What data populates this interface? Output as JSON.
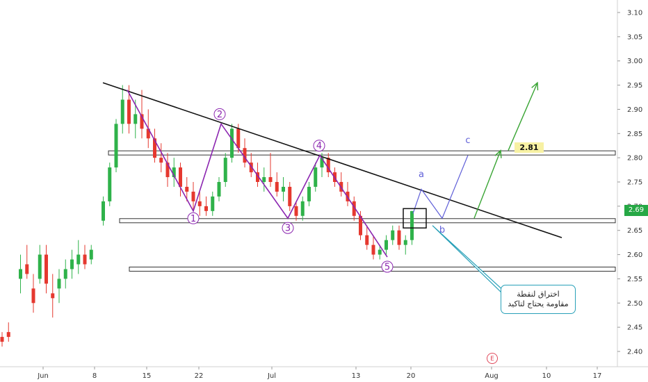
{
  "chart_data": {
    "type": "candlestick",
    "y_ticks": [
      "3.10",
      "3.05",
      "3.00",
      "2.95",
      "2.90",
      "2.85",
      "2.80",
      "2.75",
      "2.70",
      "2.65",
      "2.60",
      "2.55",
      "2.50",
      "2.45",
      "2.40"
    ],
    "x_ticks": [
      "Jun",
      "8",
      "15",
      "22",
      "Jul",
      "13",
      "20",
      "Aug",
      "10",
      "17"
    ],
    "ylim": [
      2.37,
      3.12
    ],
    "current_price": "2.69",
    "level_label": "2.81",
    "wave_labels": [
      "1",
      "2",
      "3",
      "4",
      "5"
    ],
    "abc_labels": [
      "a",
      "b",
      "c"
    ],
    "note_lines": [
      "اختراق لنقطة",
      "مقاومة يحتاج لتاكيد"
    ],
    "event_badge": "E",
    "levels": [
      2.81,
      2.67,
      2.57
    ],
    "candles": [
      [
        2.43,
        2.44,
        2.41,
        2.42
      ],
      [
        2.44,
        2.46,
        2.42,
        2.43
      ],
      [
        2.55,
        2.6,
        2.52,
        2.57
      ],
      [
        2.58,
        2.62,
        2.55,
        2.56
      ],
      [
        2.53,
        2.56,
        2.48,
        2.5
      ],
      [
        2.55,
        2.62,
        2.54,
        2.6
      ],
      [
        2.6,
        2.62,
        2.52,
        2.54
      ],
      [
        2.52,
        2.56,
        2.47,
        2.51
      ],
      [
        2.53,
        2.57,
        2.5,
        2.55
      ],
      [
        2.55,
        2.59,
        2.53,
        2.57
      ],
      [
        2.57,
        2.61,
        2.55,
        2.59
      ],
      [
        2.58,
        2.63,
        2.56,
        2.6
      ],
      [
        2.6,
        2.62,
        2.57,
        2.58
      ],
      [
        2.59,
        2.62,
        2.58,
        2.61
      ],
      [
        2.67,
        2.72,
        2.66,
        2.71
      ],
      [
        2.71,
        2.79,
        2.7,
        2.78
      ],
      [
        2.78,
        2.88,
        2.77,
        2.87
      ],
      [
        2.87,
        2.95,
        2.85,
        2.92
      ],
      [
        2.92,
        2.95,
        2.85,
        2.87
      ],
      [
        2.87,
        2.92,
        2.84,
        2.89
      ],
      [
        2.89,
        2.94,
        2.84,
        2.86
      ],
      [
        2.86,
        2.9,
        2.82,
        2.84
      ],
      [
        2.84,
        2.86,
        2.79,
        2.8
      ],
      [
        2.8,
        2.83,
        2.77,
        2.79
      ],
      [
        2.79,
        2.81,
        2.74,
        2.76
      ],
      [
        2.76,
        2.8,
        2.74,
        2.78
      ],
      [
        2.78,
        2.79,
        2.72,
        2.74
      ],
      [
        2.74,
        2.76,
        2.71,
        2.73
      ],
      [
        2.73,
        2.75,
        2.69,
        2.71
      ],
      [
        2.71,
        2.73,
        2.68,
        2.7
      ],
      [
        2.7,
        2.72,
        2.68,
        2.69
      ],
      [
        2.69,
        2.73,
        2.68,
        2.72
      ],
      [
        2.72,
        2.76,
        2.71,
        2.75
      ],
      [
        2.75,
        2.81,
        2.74,
        2.8
      ],
      [
        2.8,
        2.87,
        2.79,
        2.86
      ],
      [
        2.86,
        2.87,
        2.81,
        2.82
      ],
      [
        2.82,
        2.84,
        2.78,
        2.79
      ],
      [
        2.79,
        2.81,
        2.76,
        2.77
      ],
      [
        2.77,
        2.79,
        2.74,
        2.75
      ],
      [
        2.75,
        2.78,
        2.73,
        2.76
      ],
      [
        2.76,
        2.81,
        2.74,
        2.75
      ],
      [
        2.75,
        2.77,
        2.72,
        2.73
      ],
      [
        2.73,
        2.76,
        2.71,
        2.74
      ],
      [
        2.74,
        2.75,
        2.69,
        2.7
      ],
      [
        2.7,
        2.71,
        2.67,
        2.68
      ],
      [
        2.68,
        2.72,
        2.67,
        2.71
      ],
      [
        2.71,
        2.75,
        2.7,
        2.74
      ],
      [
        2.74,
        2.79,
        2.73,
        2.78
      ],
      [
        2.78,
        2.81,
        2.76,
        2.8
      ],
      [
        2.8,
        2.81,
        2.76,
        2.77
      ],
      [
        2.77,
        2.78,
        2.74,
        2.75
      ],
      [
        2.75,
        2.77,
        2.72,
        2.73
      ],
      [
        2.73,
        2.75,
        2.7,
        2.71
      ],
      [
        2.71,
        2.72,
        2.67,
        2.68
      ],
      [
        2.68,
        2.69,
        2.63,
        2.64
      ],
      [
        2.64,
        2.66,
        2.61,
        2.62
      ],
      [
        2.62,
        2.64,
        2.59,
        2.6
      ],
      [
        2.6,
        2.62,
        2.59,
        2.61
      ],
      [
        2.61,
        2.64,
        2.6,
        2.63
      ],
      [
        2.63,
        2.66,
        2.62,
        2.65
      ],
      [
        2.65,
        2.66,
        2.61,
        2.62
      ],
      [
        2.62,
        2.64,
        2.6,
        2.63
      ],
      [
        2.63,
        2.69,
        2.62,
        2.69
      ]
    ]
  }
}
